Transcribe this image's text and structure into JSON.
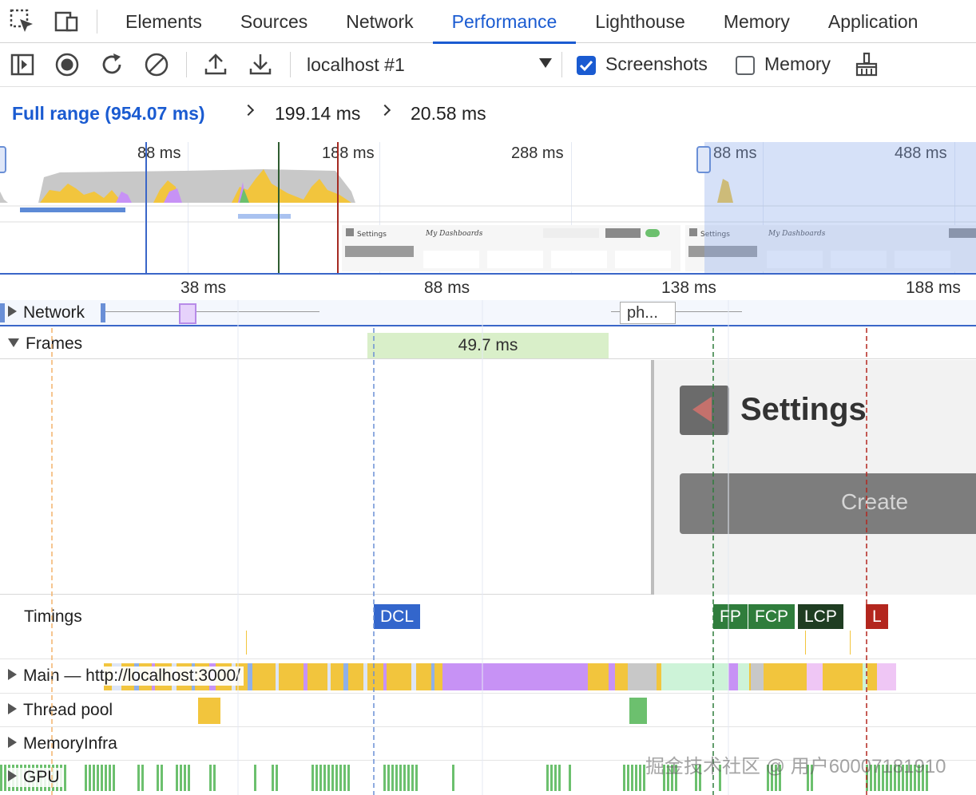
{
  "tabs": [
    {
      "label": "Elements"
    },
    {
      "label": "Sources"
    },
    {
      "label": "Network"
    },
    {
      "label": "Performance",
      "active": true
    },
    {
      "label": "Lighthouse"
    },
    {
      "label": "Memory"
    },
    {
      "label": "Application"
    }
  ],
  "toolbar": {
    "target": "localhost #1",
    "screenshots_label": "Screenshots",
    "screenshots_checked": true,
    "memory_label": "Memory",
    "memory_checked": false
  },
  "breadcrumb": {
    "full_range": "Full range (954.07 ms)",
    "level2": "199.14 ms",
    "level3": "20.58 ms"
  },
  "overview": {
    "ticks": [
      "88 ms",
      "188 ms",
      "288 ms",
      "88 ms",
      "488 ms"
    ],
    "thumb_title_1": "Settings",
    "thumb_title_2": "My Dashboards",
    "thumb_title_3": "Settings",
    "thumb_title_4": "My Dashboards"
  },
  "ruler": {
    "ticks": [
      "38 ms",
      "88 ms",
      "138 ms",
      "188 ms"
    ]
  },
  "tracks": {
    "network": "Network",
    "network_request": "ph...",
    "frames": "Frames",
    "frame_duration": "49.7 ms",
    "screenshot_title": "Settings",
    "screenshot_button": "Create",
    "timings": "Timings",
    "main": "Main — http://localhost:3000/",
    "thread_pool": "Thread pool",
    "memory_infra": "MemoryInfra",
    "gpu": "GPU"
  },
  "timing_marks": {
    "dcl": "DCL",
    "fp": "FP",
    "fcp": "FCP",
    "lcp": "LCP",
    "l": "L"
  },
  "colors": {
    "accent": "#1a5bd1",
    "scripting": "#f2c53d",
    "rendering": "#c792f5",
    "painting": "#6cc06e",
    "dcl": "#3366cc",
    "fp": "#2f7d3c",
    "lcp": "#1f3d22",
    "load": "#b3261e"
  },
  "watermark": "掘金技术社区 @ 用户60007181910"
}
